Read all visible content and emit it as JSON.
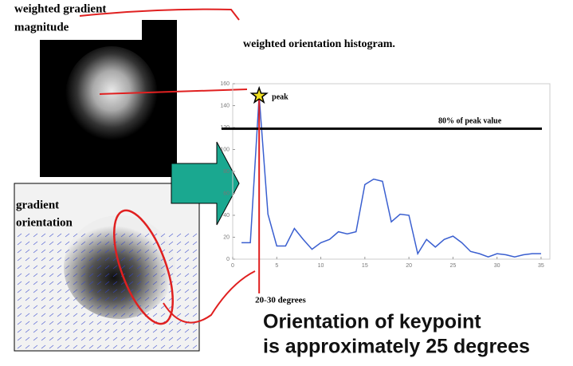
{
  "labels": {
    "magnitude": [
      "weighted gradient",
      "magnitude"
    ],
    "orientation": [
      "gradient",
      "orientation"
    ],
    "conclusion": [
      "Orientation of keypoint",
      "is approximately 25 degrees"
    ]
  },
  "chart_data": {
    "type": "line",
    "title": "weighted orientation histogram.",
    "x": [
      1,
      2,
      3,
      4,
      5,
      6,
      7,
      8,
      9,
      10,
      11,
      12,
      13,
      14,
      15,
      16,
      17,
      18,
      19,
      20,
      21,
      22,
      23,
      24,
      25,
      26,
      27,
      28,
      29,
      30,
      31,
      32,
      33,
      34,
      35
    ],
    "values": [
      15,
      15,
      149,
      41,
      12,
      12,
      28,
      18,
      9,
      15,
      18,
      25,
      23,
      25,
      68,
      73,
      71,
      34,
      41,
      40,
      5,
      18,
      11,
      18,
      21,
      15,
      7,
      5,
      2,
      5,
      4,
      2,
      4,
      5,
      5
    ],
    "color": "#3a5fd0",
    "xlim": [
      0,
      36
    ],
    "xticks": [
      0,
      5,
      10,
      15,
      20,
      25,
      30,
      35
    ],
    "ylim": [
      0,
      160
    ],
    "yticks": [
      0,
      20,
      40,
      60,
      80,
      100,
      120,
      140,
      160
    ],
    "threshold": 119,
    "threshold_label": "80% of peak value",
    "peak_label": "peak",
    "peak_range_label": "20-30 degrees"
  }
}
